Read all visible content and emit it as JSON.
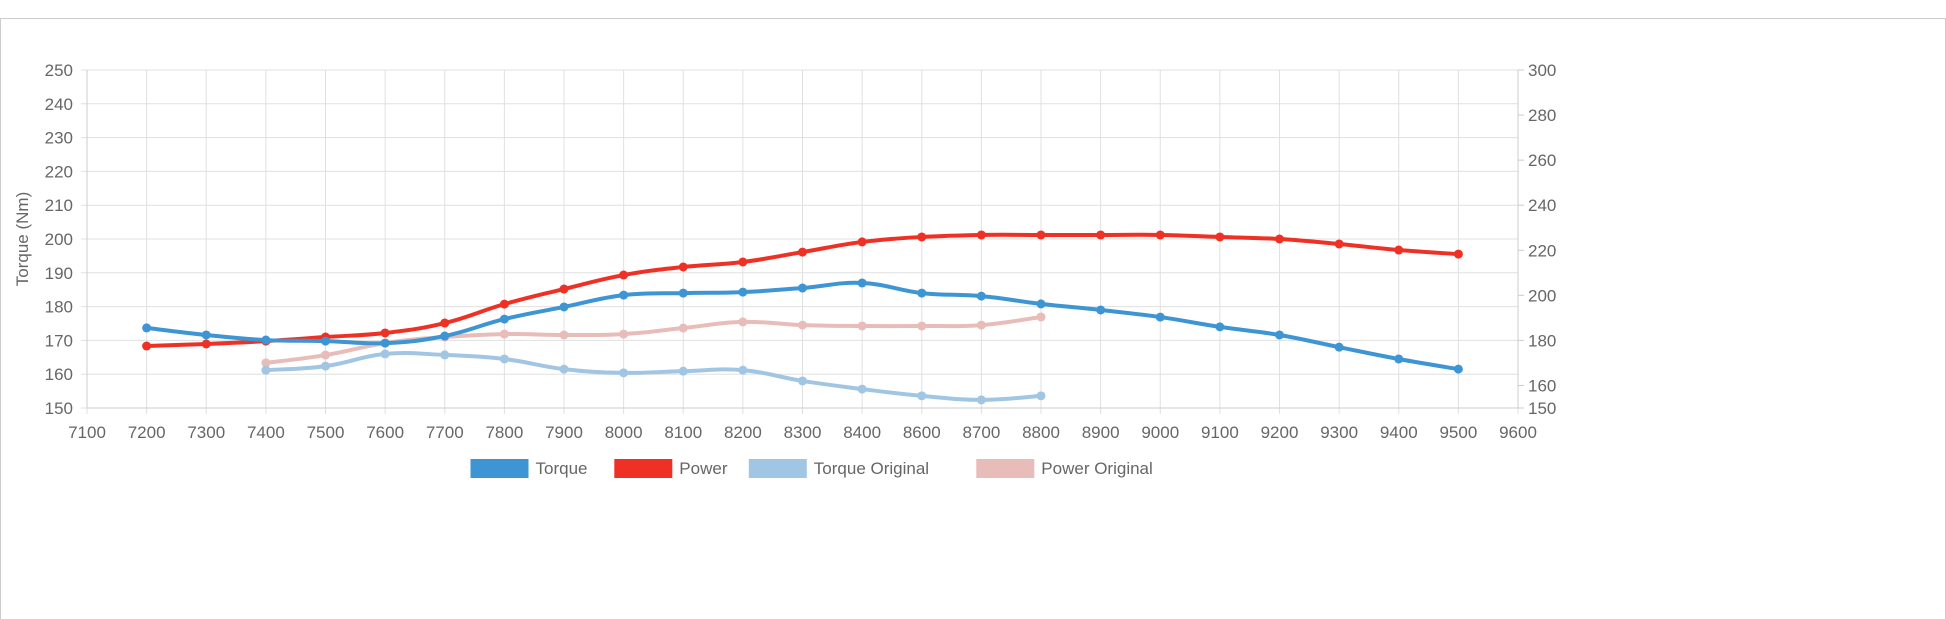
{
  "chart_data": {
    "type": "line",
    "x": [
      "7100",
      "7200",
      "7300",
      "7400",
      "7500",
      "7600",
      "7700",
      "7800",
      "7900",
      "8000",
      "8100",
      "8200",
      "8300",
      "8400",
      "8600",
      "8700",
      "8800",
      "8900",
      "9000",
      "9100",
      "9200",
      "9300",
      "9400",
      "9500",
      "9600"
    ],
    "ylabel": "Torque (Nm)",
    "ylim": [
      150,
      250
    ],
    "yticks": [
      150,
      160,
      170,
      180,
      190,
      200,
      210,
      220,
      230,
      240,
      250
    ],
    "y2lim": [
      150,
      300
    ],
    "y2ticks": [
      150,
      160,
      180,
      200,
      220,
      240,
      260,
      280,
      300
    ],
    "grid": true,
    "legend_position": "bottom",
    "series": [
      {
        "name": "Torque",
        "axis": "left",
        "color": "#3d95d3",
        "values": [
          null,
          173.7,
          171.6,
          170.1,
          169.8,
          169.2,
          171.3,
          176.3,
          179.9,
          183.4,
          184.0,
          184.3,
          185.5,
          187.0,
          184.0,
          183.1,
          180.8,
          179.0,
          176.9,
          174.0,
          171.6,
          168.0,
          164.5,
          161.5,
          null
        ]
      },
      {
        "name": "Power",
        "axis": "right",
        "color": "#ee3124",
        "values": [
          null,
          177.5,
          178.4,
          179.7,
          181.5,
          183.3,
          187.7,
          196.1,
          202.8,
          209.0,
          212.6,
          214.8,
          219.2,
          223.7,
          225.9,
          226.8,
          226.8,
          226.8,
          226.8,
          225.9,
          225.0,
          222.8,
          220.1,
          218.3,
          null
        ]
      },
      {
        "name": "Torque Original",
        "axis": "left",
        "color": "#a0c6e4",
        "values": [
          null,
          null,
          null,
          161.2,
          162.4,
          166.0,
          165.7,
          164.5,
          161.5,
          160.4,
          160.9,
          161.2,
          158.0,
          155.6,
          153.6,
          152.4,
          153.6,
          null,
          null,
          null,
          null,
          null,
          null,
          null,
          null
        ]
      },
      {
        "name": "Power Original",
        "axis": "right",
        "color": "#e8bcb8",
        "values": [
          null,
          null,
          null,
          170.0,
          173.5,
          178.8,
          181.5,
          182.8,
          182.4,
          182.8,
          185.5,
          188.2,
          186.8,
          186.4,
          186.4,
          186.8,
          190.4,
          null,
          null,
          null,
          null,
          null,
          null,
          null,
          null
        ]
      }
    ]
  }
}
